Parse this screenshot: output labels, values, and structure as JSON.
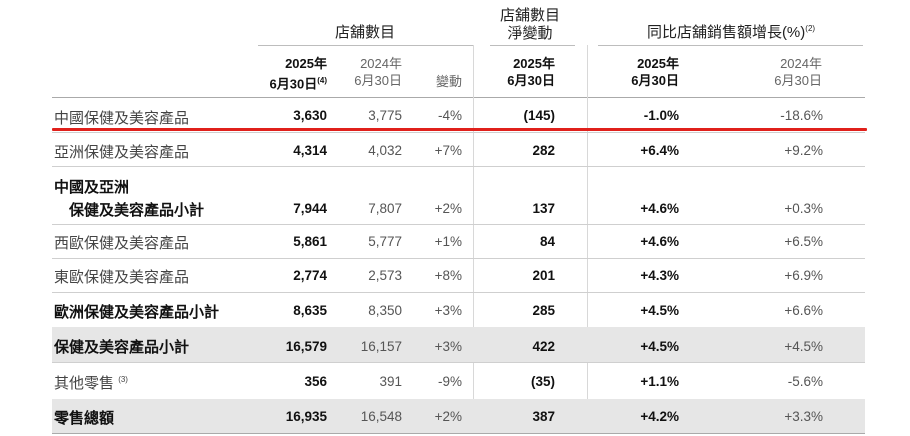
{
  "headers": {
    "group1": "店舖數目",
    "group2_line1": "店舖數目",
    "group2_line2": "淨變動",
    "group3": "同比店舖銷售額增長(%)",
    "group3_note": "(2)"
  },
  "subheaders": {
    "c1_year": "2025年",
    "c1_date": "6月30日",
    "c1_note": "(4)",
    "c2_year": "2024年",
    "c2_date": "6月30日",
    "c3": "變動",
    "c4_year": "2025年",
    "c4_date": "6月30日",
    "c5_year": "2025年",
    "c5_date": "6月30日",
    "c6_year": "2024年",
    "c6_date": "6月30日"
  },
  "rows": [
    {
      "label": "中國保健及美容產品",
      "c1": "3,630",
      "c2": "3,775",
      "c3": "-4%",
      "c4": "(145)",
      "c5": "-1.0%",
      "c6": "-18.6%"
    },
    {
      "label": "亞洲保健及美容產品",
      "c1": "4,314",
      "c2": "4,032",
      "c3": "+7%",
      "c4": "282",
      "c5": "+6.4%",
      "c6": "+9.2%"
    },
    {
      "label": "中國及亞洲",
      "label2": "保健及美容產品小計",
      "c1": "7,944",
      "c2": "7,807",
      "c3": "+2%",
      "c4": "137",
      "c5": "+4.6%",
      "c6": "+0.3%"
    },
    {
      "label": "西歐保健及美容產品",
      "c1": "5,861",
      "c2": "5,777",
      "c3": "+1%",
      "c4": "84",
      "c5": "+4.6%",
      "c6": "+6.5%"
    },
    {
      "label": "東歐保健及美容產品",
      "c1": "2,774",
      "c2": "2,573",
      "c3": "+8%",
      "c4": "201",
      "c5": "+4.3%",
      "c6": "+6.9%"
    },
    {
      "label": "歐洲保健及美容產品小計",
      "c1": "8,635",
      "c2": "8,350",
      "c3": "+3%",
      "c4": "285",
      "c5": "+4.5%",
      "c6": "+6.6%"
    },
    {
      "label": "保健及美容產品小計",
      "c1": "16,579",
      "c2": "16,157",
      "c3": "+3%",
      "c4": "422",
      "c5": "+4.5%",
      "c6": "+4.5%"
    },
    {
      "label": "其他零售",
      "note": "(3)",
      "c1": "356",
      "c2": "391",
      "c3": "-9%",
      "c4": "(35)",
      "c5": "+1.1%",
      "c6": "-5.6%"
    },
    {
      "label": "零售總額",
      "c1": "16,935",
      "c2": "16,548",
      "c3": "+2%",
      "c4": "387",
      "c5": "+4.2%",
      "c6": "+3.3%"
    }
  ],
  "highlight_color": "#e0201b",
  "shade_color": "#e6e6e6"
}
